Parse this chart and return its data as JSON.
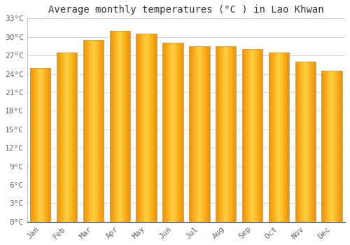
{
  "title": "Average monthly temperatures (°C ) in Lao Khwan",
  "months": [
    "Jan",
    "Feb",
    "Mar",
    "Apr",
    "May",
    "Jun",
    "Jul",
    "Aug",
    "Sep",
    "Oct",
    "Nov",
    "Dec"
  ],
  "temperatures": [
    25.0,
    27.5,
    29.5,
    31.0,
    30.5,
    29.0,
    28.5,
    28.5,
    28.0,
    27.5,
    26.0,
    24.5
  ],
  "bar_edge_color": "#C8A000",
  "bar_center_color": "#FFD040",
  "bar_side_color": "#F09000",
  "ylim": [
    0,
    33
  ],
  "yticks": [
    0,
    3,
    6,
    9,
    12,
    15,
    18,
    21,
    24,
    27,
    30,
    33
  ],
  "background_color": "#ffffff",
  "grid_color": "#d8d8d8",
  "title_fontsize": 10,
  "tick_fontsize": 8,
  "font_family": "monospace"
}
